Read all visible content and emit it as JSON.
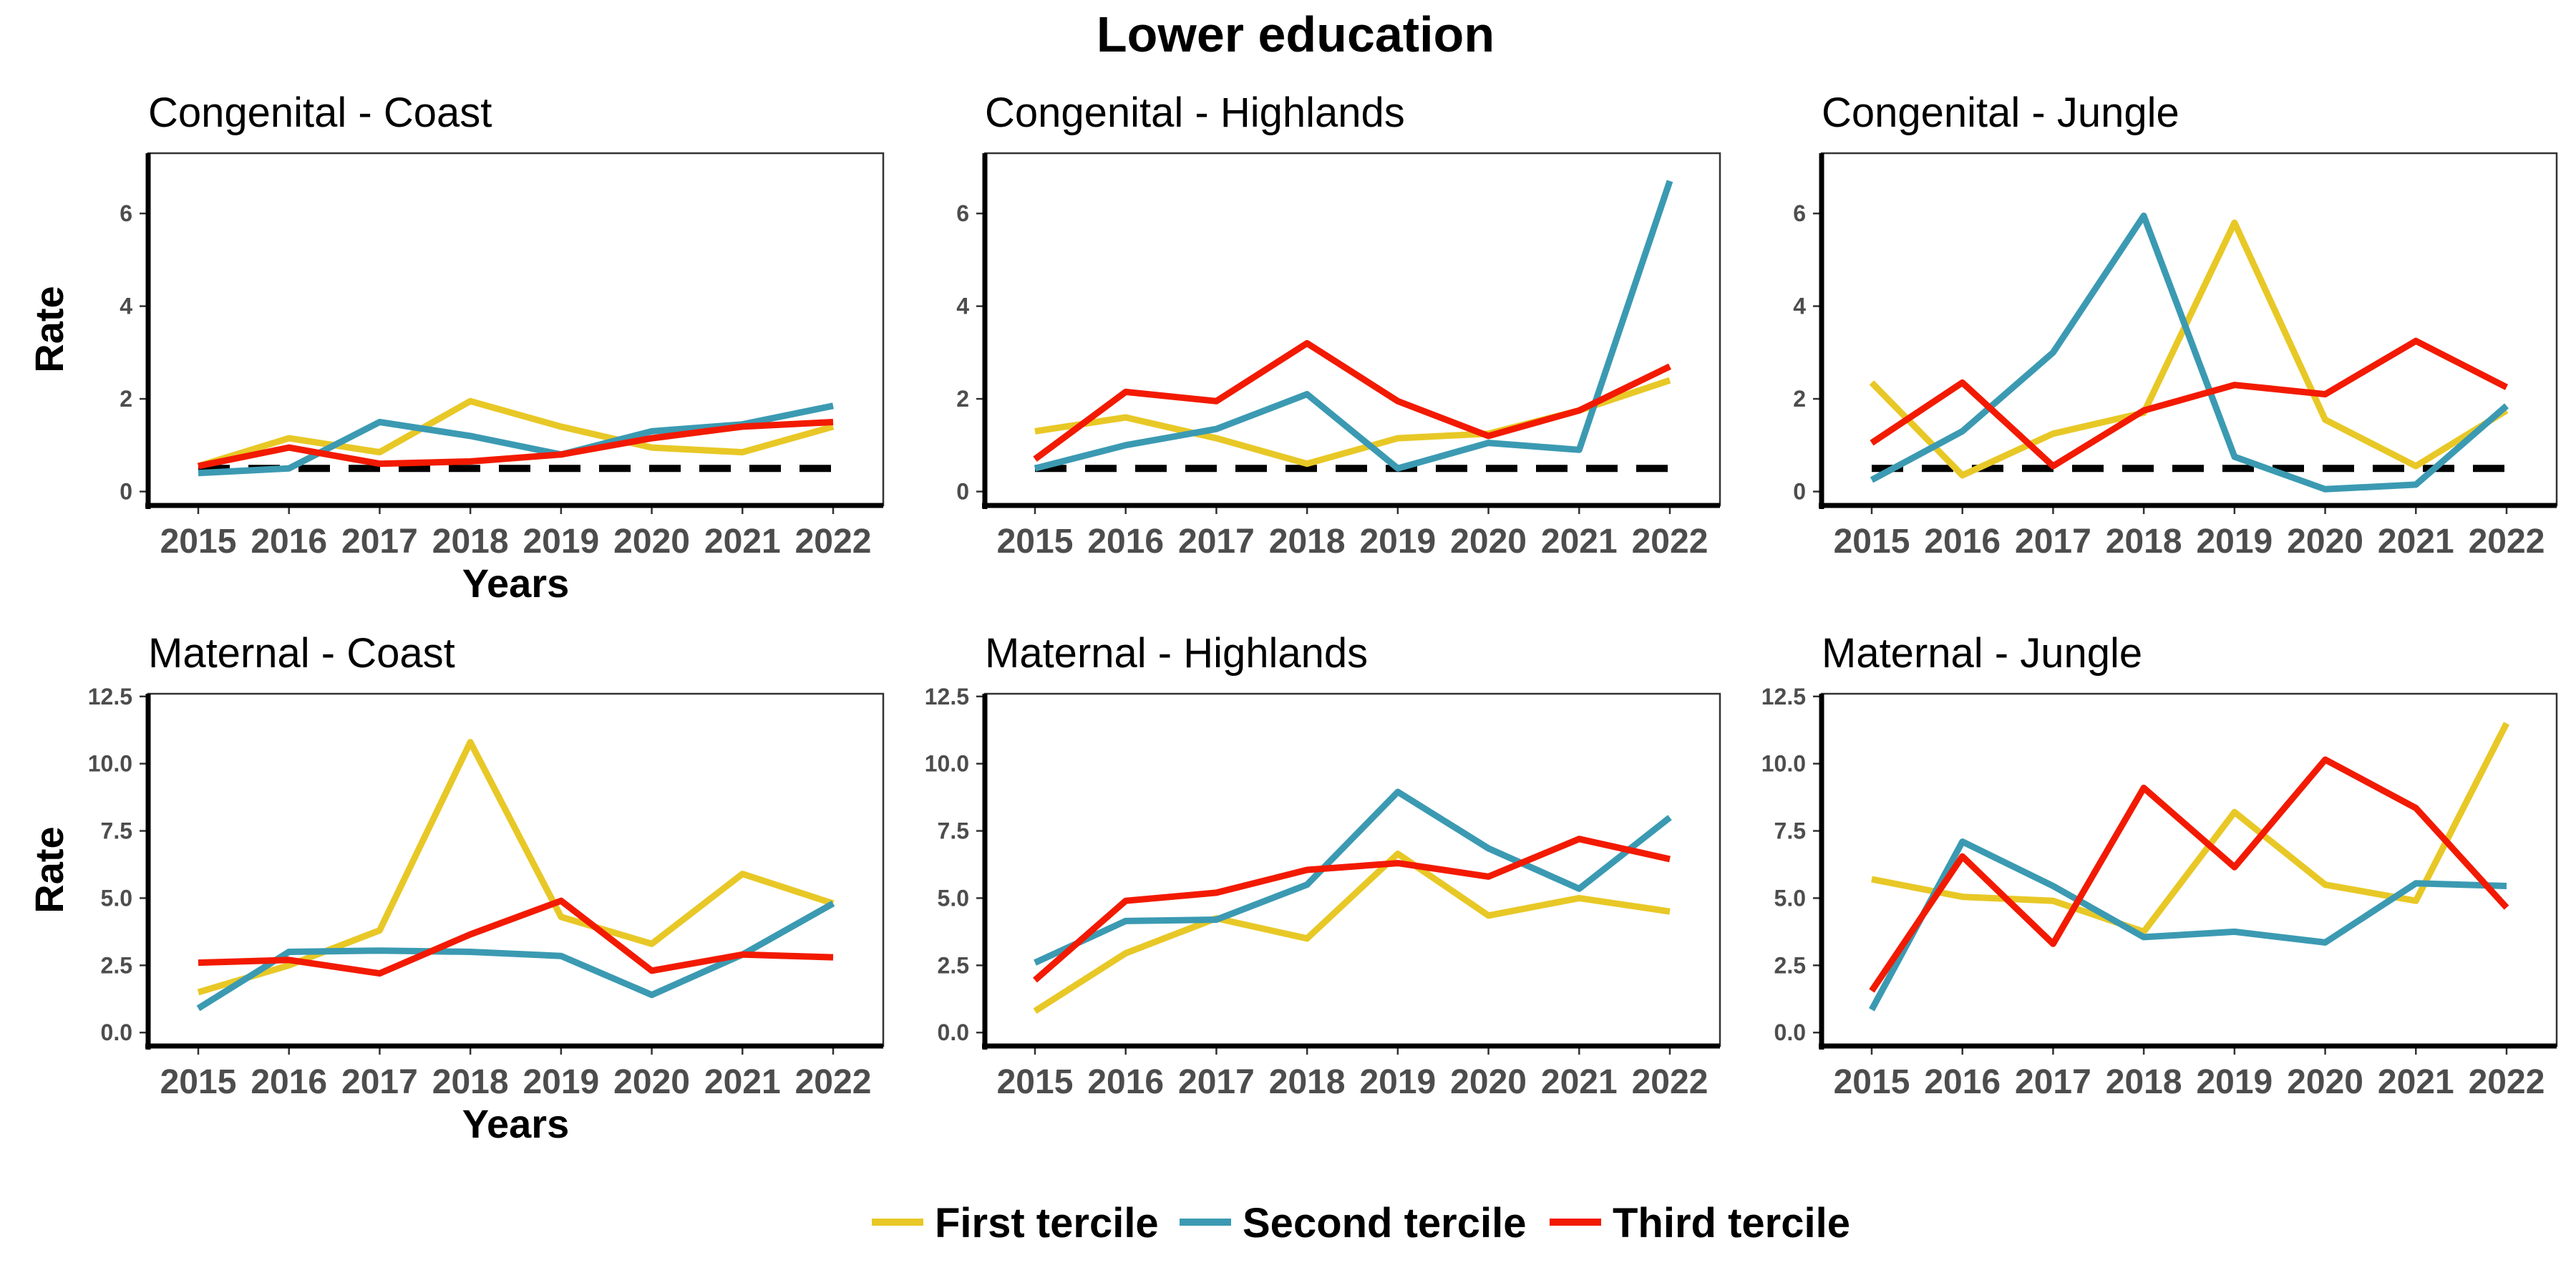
{
  "chart_data": {
    "type": "line",
    "title": "Lower education",
    "legend": {
      "placement": "bottom",
      "entries": [
        {
          "label": "First tercile",
          "color": "#E8C826"
        },
        {
          "label": "Second tercile",
          "color": "#3B9AB2"
        },
        {
          "label": "Third tercile",
          "color": "#F21A00"
        }
      ]
    },
    "x": [
      2015,
      2016,
      2017,
      2018,
      2019,
      2020,
      2021,
      2022
    ],
    "x_tick_labels": [
      "2015",
      "2016",
      "2017",
      "2018",
      "2019",
      "2020",
      "2021",
      "2022"
    ],
    "grid": false,
    "panels": [
      {
        "title": "Congenital - Coast",
        "ylabel": "Rate",
        "xlabel": "Years",
        "ylim": [
          -0.3,
          7.3
        ],
        "yticks": [
          0,
          2,
          4,
          6
        ],
        "ytick_labels": [
          "0",
          "2",
          "4",
          "6"
        ],
        "reference_line": 0.5,
        "series": [
          {
            "name": "First tercile",
            "values": [
              0.55,
              1.15,
              0.85,
              1.95,
              1.4,
              0.95,
              0.85,
              1.4
            ]
          },
          {
            "name": "Second tercile",
            "values": [
              0.4,
              0.5,
              1.5,
              1.2,
              0.8,
              1.3,
              1.45,
              1.85
            ]
          },
          {
            "name": "Third tercile",
            "values": [
              0.55,
              0.95,
              0.6,
              0.65,
              0.8,
              1.15,
              1.4,
              1.5
            ]
          }
        ]
      },
      {
        "title": "Congenital - Highlands",
        "ylabel": "",
        "xlabel": "",
        "ylim": [
          -0.3,
          7.3
        ],
        "yticks": [
          0,
          2,
          4,
          6
        ],
        "ytick_labels": [
          "0",
          "2",
          "4",
          "6"
        ],
        "reference_line": 0.5,
        "series": [
          {
            "name": "First tercile",
            "values": [
              1.3,
              1.6,
              1.15,
              0.6,
              1.15,
              1.25,
              1.75,
              2.4
            ]
          },
          {
            "name": "Second tercile",
            "values": [
              0.5,
              1.0,
              1.35,
              2.1,
              0.5,
              1.05,
              0.9,
              6.7
            ]
          },
          {
            "name": "Third tercile",
            "values": [
              0.7,
              2.15,
              1.95,
              3.2,
              1.95,
              1.2,
              1.75,
              2.7
            ]
          }
        ]
      },
      {
        "title": "Congenital - Jungle",
        "ylabel": "",
        "xlabel": "",
        "ylim": [
          -0.3,
          7.3
        ],
        "yticks": [
          0,
          2,
          4,
          6
        ],
        "ytick_labels": [
          "0",
          "2",
          "4",
          "6"
        ],
        "reference_line": 0.5,
        "series": [
          {
            "name": "First tercile",
            "values": [
              2.35,
              0.35,
              1.25,
              1.7,
              5.8,
              1.55,
              0.55,
              1.75
            ]
          },
          {
            "name": "Second tercile",
            "values": [
              0.25,
              1.3,
              3.0,
              5.95,
              0.75,
              0.05,
              0.15,
              1.85
            ]
          },
          {
            "name": "Third tercile",
            "values": [
              1.05,
              2.35,
              0.55,
              1.75,
              2.3,
              2.1,
              3.25,
              2.25
            ]
          }
        ]
      },
      {
        "title": "Maternal - Coast",
        "ylabel": "Rate",
        "xlabel": "Years",
        "ylim": [
          -0.5,
          12.6
        ],
        "yticks": [
          0,
          2.5,
          5,
          7.5,
          10,
          12.5
        ],
        "ytick_labels": [
          "0.0",
          "2.5",
          "5.0",
          "7.5",
          "10.0",
          "12.5"
        ],
        "series": [
          {
            "name": "First tercile",
            "values": [
              1.5,
              2.5,
              3.8,
              10.8,
              4.3,
              3.3,
              5.9,
              4.8
            ]
          },
          {
            "name": "Second tercile",
            "values": [
              0.9,
              3.0,
              3.05,
              3.0,
              2.85,
              1.4,
              2.9,
              4.8
            ]
          },
          {
            "name": "Third tercile",
            "values": [
              2.6,
              2.7,
              2.2,
              3.65,
              4.9,
              2.3,
              2.9,
              2.8
            ]
          }
        ]
      },
      {
        "title": "Maternal - Highlands",
        "ylabel": "",
        "xlabel": "",
        "ylim": [
          -0.5,
          12.6
        ],
        "yticks": [
          0,
          2.5,
          5,
          7.5,
          10,
          12.5
        ],
        "ytick_labels": [
          "0.0",
          "2.5",
          "5.0",
          "7.5",
          "10.0",
          "12.5"
        ],
        "series": [
          {
            "name": "First tercile",
            "values": [
              0.8,
              2.95,
              4.25,
              3.5,
              6.65,
              4.35,
              5.0,
              4.5
            ]
          },
          {
            "name": "Second tercile",
            "values": [
              2.6,
              4.15,
              4.2,
              5.5,
              8.95,
              6.85,
              5.35,
              8.0
            ]
          },
          {
            "name": "Third tercile",
            "values": [
              1.95,
              4.9,
              5.2,
              6.05,
              6.3,
              5.8,
              7.2,
              6.45
            ]
          }
        ]
      },
      {
        "title": "Maternal - Jungle",
        "ylabel": "",
        "xlabel": "",
        "ylim": [
          -0.5,
          12.6
        ],
        "yticks": [
          0,
          2.5,
          5,
          7.5,
          10,
          12.5
        ],
        "ytick_labels": [
          "0.0",
          "2.5",
          "5.0",
          "7.5",
          "10.0",
          "12.5"
        ],
        "series": [
          {
            "name": "First tercile",
            "values": [
              5.7,
              5.05,
              4.9,
              3.75,
              8.2,
              5.5,
              4.9,
              11.5
            ]
          },
          {
            "name": "Second tercile",
            "values": [
              0.85,
              7.1,
              5.45,
              3.55,
              3.75,
              3.35,
              5.55,
              5.45
            ]
          },
          {
            "name": "Third tercile",
            "values": [
              1.55,
              6.55,
              3.3,
              9.1,
              6.15,
              10.15,
              8.35,
              4.65
            ]
          }
        ]
      }
    ]
  }
}
